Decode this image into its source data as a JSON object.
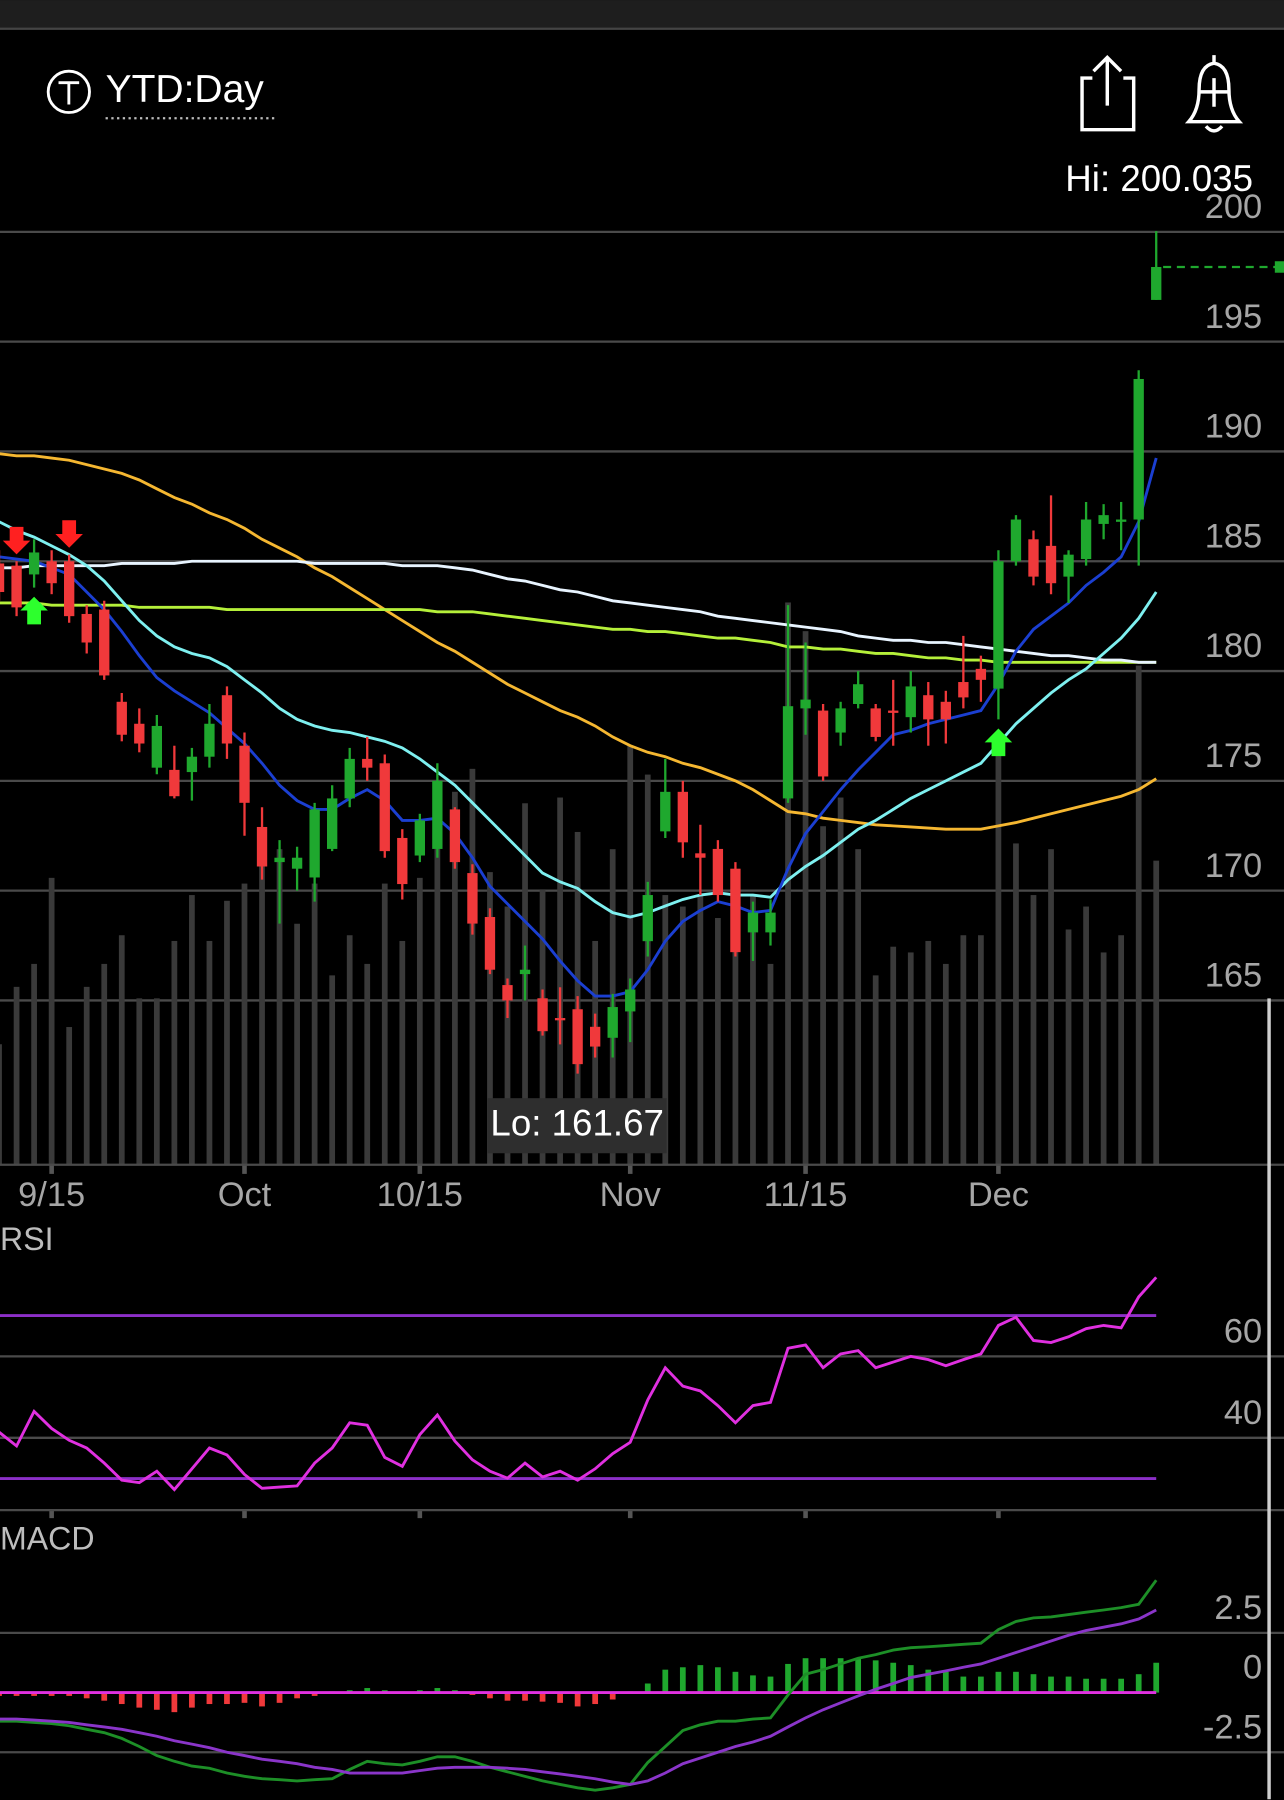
{
  "header": {
    "title": "YTD:Day"
  },
  "chart_data": [
    {
      "type": "candlestick",
      "categories": [
        null,
        null,
        null,
        "9/15",
        null,
        null,
        null,
        null,
        null,
        null,
        null,
        null,
        null,
        null,
        "Oct",
        null,
        null,
        null,
        null,
        null,
        null,
        null,
        null,
        null,
        "10/15",
        null,
        null,
        null,
        null,
        null,
        null,
        null,
        null,
        null,
        null,
        null,
        "Nov",
        null,
        null,
        null,
        null,
        null,
        null,
        null,
        null,
        null,
        "11/15",
        null,
        null,
        null,
        null,
        null,
        null,
        null,
        null,
        null,
        null,
        "Dec",
        null,
        null,
        null,
        null,
        null,
        null,
        null,
        null,
        null
      ],
      "open": [
        184.9,
        184.8,
        184.4,
        185,
        185,
        182.6,
        182.8,
        178.6,
        177.6,
        175.6,
        175.5,
        175.4,
        176.1,
        178.9,
        176.6,
        172.9,
        171.3,
        171.0,
        170.6,
        171.9,
        174.2,
        176.0,
        175.8,
        172.4,
        171.6,
        171.9,
        173.7,
        170.8,
        168.8,
        165.7,
        166.2,
        165.1,
        164.2,
        164.6,
        163.8,
        163.3,
        164.5,
        167.7,
        172.7,
        174.5,
        171.7,
        171.9,
        171,
        168.1,
        168.1,
        174.2,
        178.3,
        178.2,
        177.2,
        178.5,
        178.3,
        178.2,
        177.9,
        178.9,
        178.6,
        179.5,
        180.1,
        179.2,
        185,
        186,
        185.7,
        184.3,
        185.1,
        186.7,
        186.9,
        186.9,
        196.9
      ],
      "high": [
        185.5,
        185,
        186,
        185.5,
        185.3,
        183,
        183.2,
        179,
        178.3,
        178,
        176.6,
        176.5,
        178.5,
        179.3,
        177.2,
        173.8,
        172.3,
        172,
        174,
        174.8,
        176.5,
        177,
        176.2,
        172.8,
        173.5,
        175.8,
        173.8,
        171.2,
        169.2,
        166,
        167.5,
        165.5,
        165.6,
        165.2,
        164.4,
        165.3,
        166,
        170.4,
        176,
        175,
        173,
        172.3,
        171.3,
        169.5,
        169.6,
        183,
        181.3,
        178.5,
        178.6,
        180,
        178.5,
        179.6,
        180,
        179.5,
        179.1,
        181.6,
        180.7,
        185.5,
        187.1,
        186.4,
        188,
        185.5,
        187.7,
        187.6,
        187.7,
        193.7,
        200.035
      ],
      "low": [
        183.2,
        182.5,
        183.8,
        183.5,
        182.2,
        180.8,
        179.6,
        176.8,
        176.3,
        175.3,
        174.2,
        174.1,
        175.6,
        176,
        172.5,
        170.5,
        168.5,
        170,
        169.5,
        171.8,
        173.8,
        175,
        171.5,
        169.6,
        171.3,
        171.5,
        171,
        168,
        166.2,
        164.2,
        165,
        163.4,
        163,
        161.67,
        162.4,
        162.4,
        163.1,
        167,
        172.4,
        171.5,
        169.8,
        169.5,
        167,
        166.8,
        167.5,
        174,
        177.1,
        175,
        176.6,
        178.3,
        176.8,
        176.6,
        177.2,
        176.6,
        176.7,
        178.3,
        178.6,
        177.8,
        184.8,
        183.9,
        183.5,
        183.1,
        184.8,
        186,
        185.5,
        184.8,
        196.9
      ],
      "close": [
        183.6,
        182.9,
        185.4,
        184,
        182.5,
        181.3,
        179.8,
        177.1,
        176.7,
        177.5,
        174.3,
        176.1,
        177.6,
        176.7,
        174.0,
        171.1,
        171.5,
        171.5,
        173.7,
        174.2,
        176.0,
        175.6,
        171.8,
        170.3,
        173.2,
        175.0,
        171.3,
        168.5,
        166.4,
        165,
        166.4,
        163.6,
        164.1,
        162.1,
        162.9,
        164.7,
        165.5,
        169.8,
        174.5,
        172.2,
        171.5,
        169.8,
        167.2,
        169.0,
        169.0,
        178.4,
        178.7,
        175.2,
        178.3,
        179.4,
        177,
        178.1,
        179.3,
        177.8,
        177.8,
        178.8,
        179.6,
        185,
        186.9,
        184.3,
        184,
        185.3,
        186.9,
        187.1,
        186.9,
        193.3,
        198.4
      ],
      "up_color": "#1fa82e",
      "down_color": "#f0393b",
      "volume": [
        21,
        31,
        35,
        50,
        24,
        31,
        35,
        40,
        29,
        29,
        39,
        47,
        39,
        46,
        49,
        53,
        55,
        42,
        49,
        33,
        40,
        35,
        49,
        39,
        50,
        63,
        65,
        69,
        51,
        45,
        63,
        48,
        64,
        58,
        39,
        55,
        73,
        68,
        47,
        45,
        47,
        43,
        47,
        47,
        35,
        98,
        93,
        59,
        64,
        55,
        33,
        38,
        37,
        39,
        35,
        40,
        40,
        73,
        56,
        47,
        55,
        41,
        45,
        37,
        40,
        87,
        53
      ],
      "volume_color": "#3a3a3a",
      "moving_averages": [
        {
          "color": "#f5b731",
          "values": [
            189.9,
            189.8,
            189.8,
            189.7,
            189.6,
            189.4,
            189.2,
            189.0,
            188.7,
            188.3,
            187.9,
            187.6,
            187.2,
            186.9,
            186.5,
            186.0,
            185.6,
            185.2,
            184.7,
            184.3,
            183.8,
            183.3,
            182.8,
            182.3,
            181.8,
            181.3,
            180.9,
            180.4,
            179.9,
            179.4,
            179.0,
            178.6,
            178.2,
            177.9,
            177.5,
            177.0,
            176.6,
            176.3,
            176.1,
            175.8,
            175.6,
            175.3,
            175.0,
            174.6,
            174.1,
            173.6,
            173.5,
            173.3,
            173.2,
            173.1,
            173.0,
            172.95,
            172.9,
            172.85,
            172.8,
            172.8,
            172.8,
            172.95,
            173.1,
            173.3,
            173.5,
            173.7,
            173.9,
            174.1,
            174.3,
            174.6,
            175.1
          ]
        },
        {
          "color": "#b5f03a",
          "values": [
            183.1,
            183.1,
            183.1,
            183.0,
            183.0,
            183.0,
            183.0,
            183.0,
            182.9,
            182.9,
            182.9,
            182.9,
            182.9,
            182.8,
            182.8,
            182.8,
            182.8,
            182.8,
            182.8,
            182.8,
            182.8,
            182.8,
            182.8,
            182.8,
            182.8,
            182.7,
            182.7,
            182.7,
            182.6,
            182.5,
            182.4,
            182.3,
            182.2,
            182.1,
            182.0,
            181.9,
            181.9,
            181.8,
            181.8,
            181.7,
            181.6,
            181.5,
            181.5,
            181.4,
            181.3,
            181.1,
            181.1,
            181.0,
            181.0,
            180.9,
            180.8,
            180.8,
            180.7,
            180.6,
            180.6,
            180.5,
            180.5,
            180.4,
            180.4,
            180.4,
            180.4,
            180.4,
            180.4,
            180.4,
            180.4,
            180.4,
            180.4
          ]
        },
        {
          "color": "#e8f4ff",
          "values": [
            184.7,
            184.7,
            184.8,
            184.8,
            184.8,
            184.8,
            184.8,
            184.9,
            184.9,
            184.9,
            184.9,
            185.0,
            185.0,
            185.0,
            185.0,
            185.0,
            185.0,
            185.0,
            184.9,
            184.9,
            184.9,
            184.9,
            184.9,
            184.8,
            184.8,
            184.8,
            184.7,
            184.6,
            184.4,
            184.2,
            184.1,
            183.9,
            183.7,
            183.6,
            183.4,
            183.2,
            183.1,
            183.0,
            182.9,
            182.8,
            182.7,
            182.5,
            182.4,
            182.3,
            182.2,
            182.1,
            182.0,
            181.9,
            181.8,
            181.6,
            181.5,
            181.4,
            181.4,
            181.3,
            181.3,
            181.2,
            181.1,
            181.0,
            180.9,
            180.8,
            180.7,
            180.7,
            180.6,
            180.5,
            180.5,
            180.4,
            180.4
          ]
        },
        {
          "color": "#7ef0f0",
          "values": [
            186.8,
            186.4,
            186.1,
            185.7,
            185.3,
            184.8,
            184.1,
            183.2,
            182.3,
            181.6,
            181.1,
            180.8,
            180.6,
            180.2,
            179.6,
            179.0,
            178.3,
            177.8,
            177.5,
            177.3,
            177.2,
            177.0,
            176.8,
            176.5,
            176.0,
            175.4,
            174.8,
            174.0,
            173.2,
            172.4,
            171.6,
            170.8,
            170.4,
            170.1,
            169.5,
            169.0,
            168.8,
            169.0,
            169.3,
            169.6,
            169.8,
            169.9,
            169.8,
            169.8,
            169.7,
            170.5,
            171.1,
            171.6,
            172.2,
            172.8,
            173.2,
            173.7,
            174.2,
            174.6,
            175.0,
            175.4,
            175.8,
            176.7,
            177.6,
            178.3,
            179.0,
            179.6,
            180.1,
            180.8,
            181.5,
            182.4,
            183.6
          ]
        },
        {
          "color": "#1b3fd1",
          "values": [
            185.2,
            185.1,
            185.0,
            184.7,
            184.4,
            183.6,
            182.8,
            181.8,
            180.7,
            179.7,
            179.1,
            178.6,
            178.1,
            177.4,
            176.7,
            175.8,
            174.8,
            174.1,
            173.7,
            173.7,
            174.2,
            174.6,
            174.1,
            173.2,
            173.2,
            173.3,
            172.6,
            171.5,
            170.2,
            169.4,
            168.6,
            167.8,
            166.8,
            165.9,
            165.2,
            165.2,
            165.4,
            166.4,
            167.7,
            168.6,
            169.1,
            169.5,
            169.3,
            169.0,
            169.1,
            171.0,
            172.6,
            173.6,
            174.6,
            175.5,
            176.3,
            177.1,
            177.3,
            177.6,
            177.8,
            178.0,
            178.2,
            179.4,
            180.9,
            181.9,
            182.5,
            183.1,
            183.9,
            184.5,
            185.2,
            186.8,
            189.7
          ]
        }
      ],
      "buy_signals": [
        2,
        57
      ],
      "sell_signals": [
        1,
        4
      ],
      "hi_label": "Hi: 200.035",
      "lo_label": "Lo: 161.67",
      "ylim": [
        157.52,
        203.24
      ],
      "yticks": [
        165,
        170,
        175,
        180,
        185,
        190,
        195,
        200
      ],
      "grid": true
    },
    {
      "type": "line",
      "title": "RSI",
      "series": [
        {
          "color": "#e030e0",
          "values": [
            41.4,
            38.0,
            46.5,
            42.3,
            39.4,
            37.5,
            33.8,
            29.6,
            29.0,
            31.8,
            27.3,
            32.4,
            37.5,
            35.8,
            31.0,
            27.6,
            27.9,
            28.2,
            33.8,
            37.5,
            43.7,
            43.1,
            35.2,
            33.0,
            40.8,
            45.6,
            39.2,
            34.6,
            31.8,
            30.1,
            33.8,
            30.4,
            31.8,
            29.6,
            32.4,
            36.1,
            38.9,
            49.3,
            57.2,
            52.7,
            51.5,
            47.9,
            43.7,
            47.9,
            48.7,
            62.0,
            62.8,
            57.2,
            60.6,
            61.4,
            57.2,
            58.6,
            60.0,
            59.2,
            57.7,
            59.2,
            60.6,
            67.6,
            69.6,
            63.9,
            63.4,
            64.8,
            66.8,
            67.6,
            67.0,
            74.6,
            79.4
          ]
        }
      ],
      "levels": [
        30,
        70
      ],
      "level_color": "#8c2fc7",
      "ylim": [
        21.13,
        83.1
      ],
      "yticks": [
        40,
        60
      ],
      "grid": true
    },
    {
      "type": "macd",
      "title": "MACD",
      "series": [
        {
          "color": "#1d8f27",
          "values": [
            -1.2,
            -1.2,
            -1.25,
            -1.3,
            -1.39,
            -1.54,
            -1.68,
            -1.92,
            -2.26,
            -2.64,
            -2.88,
            -3.08,
            -3.17,
            -3.37,
            -3.51,
            -3.61,
            -3.65,
            -3.7,
            -3.65,
            -3.61,
            -3.22,
            -2.88,
            -2.98,
            -3.03,
            -2.88,
            -2.69,
            -2.69,
            -2.88,
            -3.13,
            -3.32,
            -3.51,
            -3.7,
            -3.85,
            -3.99,
            -4.09,
            -3.99,
            -3.85,
            -2.93,
            -2.26,
            -1.59,
            -1.35,
            -1.2,
            -1.2,
            -1.11,
            -1.06,
            -0.1,
            0.77,
            0.96,
            1.2,
            1.44,
            1.59,
            1.78,
            1.88,
            1.92,
            1.97,
            2.02,
            2.07,
            2.64,
            2.98,
            3.13,
            3.17,
            3.27,
            3.37,
            3.46,
            3.56,
            3.7,
            4.71
          ]
        },
        {
          "color": "#8a35c9",
          "values": [
            -1.11,
            -1.11,
            -1.15,
            -1.2,
            -1.25,
            -1.35,
            -1.44,
            -1.54,
            -1.68,
            -1.83,
            -2.02,
            -2.16,
            -2.31,
            -2.5,
            -2.64,
            -2.79,
            -2.88,
            -2.98,
            -3.13,
            -3.22,
            -3.37,
            -3.37,
            -3.37,
            -3.37,
            -3.27,
            -3.17,
            -3.13,
            -3.13,
            -3.13,
            -3.17,
            -3.22,
            -3.32,
            -3.41,
            -3.51,
            -3.61,
            -3.75,
            -3.85,
            -3.7,
            -3.37,
            -2.98,
            -2.74,
            -2.5,
            -2.26,
            -2.07,
            -1.83,
            -1.44,
            -1.06,
            -0.72,
            -0.43,
            -0.14,
            0.14,
            0.38,
            0.63,
            0.77,
            0.91,
            1.06,
            1.2,
            1.44,
            1.68,
            1.92,
            2.16,
            2.4,
            2.6,
            2.74,
            2.88,
            3.08,
            3.46
          ]
        }
      ],
      "histogram": [
        -0.14,
        -0.14,
        -0.14,
        -0.14,
        -0.14,
        -0.24,
        -0.34,
        -0.48,
        -0.63,
        -0.72,
        -0.82,
        -0.63,
        -0.48,
        -0.48,
        -0.43,
        -0.58,
        -0.43,
        -0.24,
        -0.14,
        0.05,
        0.1,
        0.19,
        0.1,
        0.05,
        0.1,
        0.19,
        0.1,
        -0.1,
        -0.24,
        -0.34,
        -0.34,
        -0.38,
        -0.43,
        -0.58,
        -0.48,
        -0.29,
        0.05,
        0.38,
        0.96,
        1.06,
        1.15,
        1.06,
        0.87,
        0.72,
        0.67,
        1.2,
        1.44,
        1.44,
        1.44,
        1.44,
        1.35,
        1.25,
        1.15,
        0.96,
        0.87,
        0.67,
        0.67,
        0.87,
        0.87,
        0.77,
        0.67,
        0.67,
        0.58,
        0.58,
        0.58,
        0.77,
        1.25
      ],
      "hist_up_color": "#1fa82e",
      "hist_down_color": "#f0393b",
      "zero_color": "#e030e0",
      "ylim": [
        -4.47,
        5.53
      ],
      "yticks": [
        -2.5,
        0,
        2.5
      ],
      "grid": true
    }
  ]
}
